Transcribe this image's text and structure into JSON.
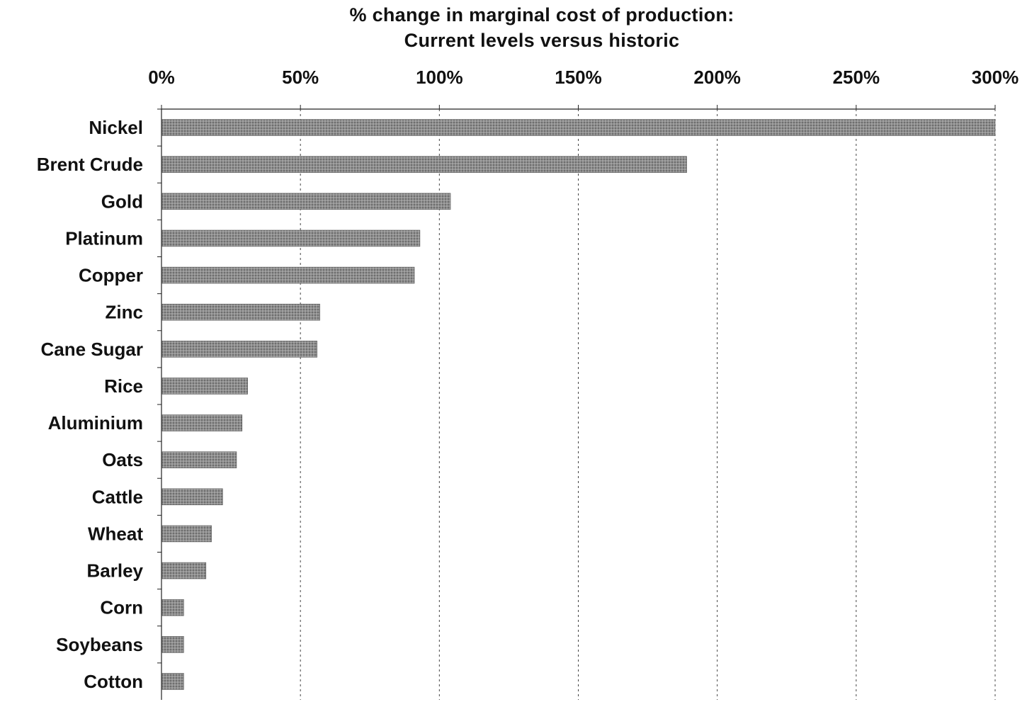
{
  "chart_data": {
    "type": "bar",
    "orientation": "horizontal",
    "title": "% change in marginal cost of production:",
    "subtitle": "Current levels versus historic",
    "xlabel": "",
    "ylabel": "",
    "xlim": [
      0,
      300
    ],
    "x_ticks": [
      0,
      50,
      100,
      150,
      200,
      250,
      300
    ],
    "x_tick_labels": [
      "0%",
      "50%",
      "100%",
      "150%",
      "200%",
      "250%",
      "300%"
    ],
    "x_axis_position": "top",
    "grid": "vertical dashed",
    "categories": [
      "Nickel",
      "Brent Crude",
      "Gold",
      "Platinum",
      "Copper",
      "Zinc",
      "Cane Sugar",
      "Rice",
      "Aluminium",
      "Oats",
      "Cattle",
      "Wheat",
      "Barley",
      "Corn",
      "Soybeans",
      "Cotton"
    ],
    "values": [
      300,
      189,
      104,
      93,
      91,
      57,
      56,
      31,
      29,
      27,
      22,
      18,
      16,
      8,
      8,
      8
    ],
    "bar_color": "#8a8a8a"
  }
}
